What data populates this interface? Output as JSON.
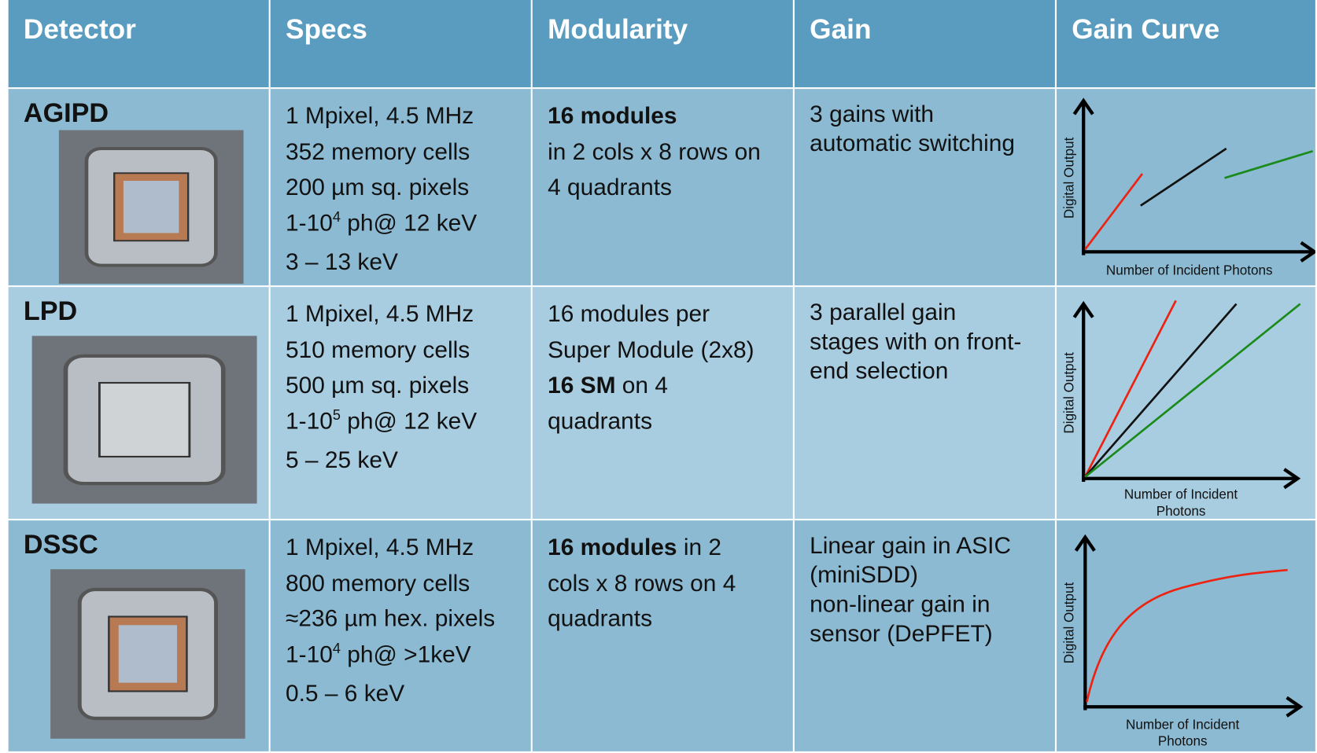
{
  "header": {
    "columns": [
      "Detector",
      "Specs",
      "Modularity",
      "Gain",
      "Gain Curve"
    ]
  },
  "rows": [
    {
      "detector": "AGIPD",
      "specs": [
        [
          {
            "text": "1 Mpixel, 4.5 MHz"
          }
        ],
        [
          {
            "text": "352 memory cells"
          }
        ],
        [
          {
            "text": "200 µm sq. pixels"
          }
        ],
        [
          {
            "text": "1-10"
          },
          {
            "text": "4",
            "sup": true
          },
          {
            "text": " ph@ 12 keV"
          }
        ],
        [
          {
            "text": "3 – 13 keV"
          }
        ]
      ],
      "modularity": [
        [
          {
            "text": "16 modules",
            "bold": true
          }
        ],
        [
          {
            "text": "in 2 cols x 8 rows on"
          }
        ],
        [
          {
            "text": "4 quadrants"
          }
        ]
      ],
      "gain": [
        "3 gains with",
        "automatic switching"
      ],
      "curve": {
        "y_label": "Digital Output",
        "x_label": [
          "Number of Incident Photons"
        ]
      }
    },
    {
      "detector": "LPD",
      "specs": [
        [
          {
            "text": "1 Mpixel, 4.5 MHz"
          }
        ],
        [
          {
            "text": "510 memory cells"
          }
        ],
        [
          {
            "text": "500 µm sq. pixels"
          }
        ],
        [
          {
            "text": "1-10"
          },
          {
            "text": "5",
            "sup": true
          },
          {
            "text": " ph@ 12 keV"
          }
        ],
        [
          {
            "text": "5 – 25 keV"
          }
        ]
      ],
      "modularity": [
        [
          {
            "text": "16 modules per"
          }
        ],
        [
          {
            "text": "Super Module (2x8)"
          }
        ],
        [
          {
            "text": "16 SM",
            "bold": true
          },
          {
            "text": " on 4"
          }
        ],
        [
          {
            "text": "quadrants"
          }
        ]
      ],
      "gain": [
        "3 parallel gain",
        "stages with on front-",
        "end selection"
      ],
      "curve": {
        "y_label": "Digital Output",
        "x_label": [
          "Number of Incident",
          "Photons"
        ]
      }
    },
    {
      "detector": "DSSC",
      "specs": [
        [
          {
            "text": "1 Mpixel, 4.5 MHz"
          }
        ],
        [
          {
            "text": "800 memory cells"
          }
        ],
        [
          {
            "text": "≈236 µm hex. pixels"
          }
        ],
        [
          {
            "text": "1-10"
          },
          {
            "text": "4",
            "sup": true
          },
          {
            "text": " ph@ >1keV"
          }
        ],
        [
          {
            "text": "0.5 – 6 keV"
          }
        ]
      ],
      "modularity": [
        [
          {
            "text": "16 modules",
            "bold": true
          },
          {
            "text": " in 2"
          }
        ],
        [
          {
            "text": "cols x 8 rows on 4"
          }
        ],
        [
          {
            "text": "quadrants"
          }
        ]
      ],
      "gain": [
        "Linear gain in ASIC",
        "(miniSDD)",
        "non-linear gain in",
        "sensor (DePFET)"
      ],
      "curve": {
        "y_label": "Digital Output",
        "x_label": [
          "Number of Incident",
          "Photons"
        ]
      }
    }
  ]
}
